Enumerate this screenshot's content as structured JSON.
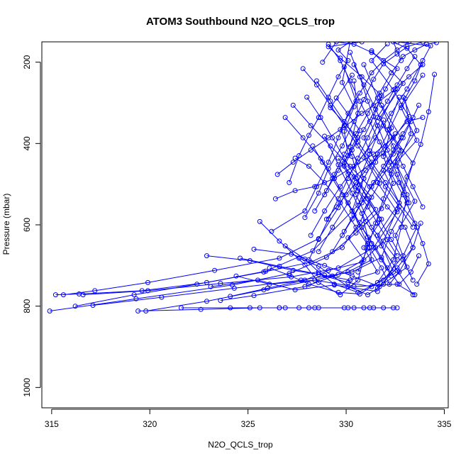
{
  "chart_data": {
    "type": "line",
    "title": "ATOM3 Southbound N2O_QCLS_trop",
    "xlabel": "N2O_QCLS_trop",
    "ylabel": "Pressure (mbar)",
    "xlim": [
      314.5,
      335.2
    ],
    "ylim": [
      1050,
      150
    ],
    "y_reversed": true,
    "x_ticks": [
      "315",
      "320",
      "325",
      "330",
      "335"
    ],
    "y_ticks": [
      "200",
      "400",
      "600",
      "800",
      "1000"
    ],
    "markers": "open-circle",
    "grid": false,
    "legend": "none",
    "colors": {
      "series": "#0000ff",
      "axes": "#000000",
      "background": "#ffffff"
    },
    "series": [
      {
        "x": [
          315.2,
          316.4,
          319.6,
          322.9,
          325.9,
          328.3,
          330.6,
          331.5,
          331.2,
          330.9,
          331.4,
          331.8,
          330.8,
          329.7,
          329.1,
          330.8
        ],
        "y": [
          772,
          770,
          762,
          742,
          714,
          664,
          552,
          446,
          418,
          386,
          334,
          282,
          236,
          190,
          162,
          150
        ]
      },
      {
        "x": [
          314.9,
          319.3,
          324.2,
          327.1,
          329.0,
          330.5,
          331.8,
          332.4,
          331.9,
          332.3,
          331.6,
          330.9
        ],
        "y": [
          812,
          782,
          748,
          720,
          680,
          620,
          560,
          498,
          432,
          362,
          288,
          206
        ]
      },
      {
        "x": [
          315.6,
          317.2,
          319.9,
          323.3,
          326.6,
          328.6,
          329.6,
          330.4,
          331.9,
          333.2,
          332.4,
          331.3,
          332.1
        ],
        "y": [
          772,
          762,
          742,
          712,
          682,
          634,
          558,
          482,
          424,
          334,
          268,
          196,
          155
        ]
      },
      {
        "x": [
          316.2,
          319.2,
          322.4,
          325.8,
          328.2,
          329.8,
          330.7,
          331.3,
          329.9,
          330.6,
          329.2,
          330.3
        ],
        "y": [
          800,
          772,
          746,
          716,
          692,
          656,
          594,
          532,
          456,
          386,
          312,
          232
        ]
      },
      {
        "x": [
          316.6,
          319.9,
          323.6,
          327.2,
          329.6,
          331.4,
          332.6,
          331.6,
          332.8,
          331.7,
          332.9,
          331.3
        ],
        "y": [
          772,
          762,
          744,
          728,
          706,
          656,
          568,
          496,
          418,
          338,
          252,
          172
        ]
      },
      {
        "x": [
          317.1,
          320.6,
          324.3,
          327.7,
          330.3,
          331.8,
          332.3,
          333.1,
          332.2,
          333.6,
          332.8,
          333.9
        ],
        "y": [
          798,
          778,
          756,
          736,
          716,
          680,
          616,
          546,
          466,
          392,
          312,
          232
        ]
      },
      {
        "x": [
          319.8,
          322.9,
          325.8,
          328.4,
          330.1,
          331.3,
          331.1,
          330.8,
          331.7,
          330.9,
          331.6,
          332.6
        ],
        "y": [
          812,
          788,
          760,
          736,
          716,
          686,
          630,
          572,
          498,
          434,
          356,
          266
        ]
      },
      {
        "x": [
          323.6,
          325.3,
          327.9,
          329.6,
          330.9,
          330.1,
          331.5,
          330.7,
          330.3,
          329.7,
          330.5,
          329.9
        ],
        "y": [
          786,
          774,
          752,
          722,
          686,
          632,
          562,
          502,
          432,
          366,
          296,
          212
        ]
      },
      {
        "x": [
          324.1,
          326.0,
          327.9,
          329.1,
          330.8,
          331.9,
          332.6,
          333.1,
          333.8,
          334.2,
          334.5
        ],
        "y": [
          776,
          756,
          736,
          712,
          692,
          640,
          562,
          482,
          402,
          322,
          230
        ]
      },
      {
        "x": [
          322.9,
          325.1,
          327.3,
          328.9,
          330.2,
          331.6,
          330.9,
          331.8,
          330.5,
          331.2,
          331.9
        ],
        "y": [
          676,
          688,
          712,
          724,
          736,
          716,
          656,
          586,
          506,
          426,
          342
        ]
      },
      {
        "x": [
          324.6,
          326.6,
          328.6,
          330.1,
          331.3,
          332.4,
          331.6,
          332.7,
          331.9,
          332.8,
          331.8
        ],
        "y": [
          682,
          702,
          722,
          742,
          752,
          716,
          626,
          546,
          466,
          386,
          306
        ]
      },
      {
        "x": [
          325.3,
          327.2,
          328.9,
          330.3,
          331.7,
          333.1,
          332.5,
          333.5,
          332.6,
          333.3,
          333.0
        ],
        "y": [
          660,
          672,
          700,
          726,
          752,
          704,
          626,
          542,
          456,
          376,
          290
        ]
      },
      {
        "x": [
          325.6,
          326.6,
          327.9,
          328.6,
          329.7,
          330.6,
          331.1,
          330.3,
          330.9,
          330.2,
          330.6,
          330.4
        ],
        "y": [
          592,
          640,
          698,
          742,
          772,
          736,
          646,
          566,
          486,
          408,
          326,
          246
        ]
      },
      {
        "x": [
          326.1,
          327.1,
          328.1,
          329.6,
          330.7,
          331.6,
          332.4,
          332.8,
          333.1,
          332.5,
          333.6,
          332.9
        ],
        "y": [
          706,
          724,
          746,
          766,
          770,
          742,
          686,
          606,
          526,
          446,
          368,
          286
        ]
      },
      {
        "x": [
          326.9,
          327.9,
          328.6,
          329.4,
          330.6,
          331.9,
          332.9,
          333.6,
          332.9,
          333.4,
          332.1,
          332.7
        ],
        "y": [
          652,
          684,
          716,
          746,
          766,
          736,
          676,
          606,
          526,
          448,
          366,
          286
        ]
      },
      {
        "x": [
          327.6,
          328.6,
          329.3,
          330.1,
          331.1,
          331.9,
          332.6,
          331.3,
          330.5,
          329.9,
          330.7,
          329.5
        ],
        "y": [
          682,
          702,
          726,
          752,
          772,
          746,
          686,
          606,
          526,
          448,
          368,
          288
        ]
      },
      {
        "x": [
          327.1,
          327.6,
          328.1,
          328.6,
          329.1,
          329.6,
          330.1,
          329.6,
          330.2,
          329.8,
          330.4,
          329.9,
          330.1
        ],
        "y": [
          496,
          430,
          380,
          336,
          286,
          236,
          196,
          170,
          150,
          250,
          310,
          370,
          430
        ]
      },
      {
        "x": [
          327.9,
          328.6,
          329.1,
          329.8,
          330.4,
          330.9,
          331.4,
          331.9,
          332.6,
          333.1,
          333.9
        ],
        "y": [
          582,
          522,
          462,
          406,
          346,
          292,
          242,
          204,
          180,
          162,
          150
        ]
      },
      {
        "x": [
          328.2,
          328.9,
          329.7,
          330.6,
          331.5,
          332.3,
          333.1,
          333.8,
          333.1,
          332.4,
          332.8
        ],
        "y": [
          626,
          566,
          506,
          446,
          386,
          326,
          266,
          206,
          166,
          150,
          196
        ]
      },
      {
        "x": [
          328.6,
          329.3,
          330.1,
          330.9,
          331.6,
          332.2,
          332.8,
          333.5,
          333.9,
          334.3,
          332.6
        ],
        "y": [
          666,
          606,
          546,
          486,
          426,
          366,
          306,
          246,
          196,
          160,
          150
        ]
      },
      {
        "x": [
          328.4,
          329.0,
          329.6,
          330.3,
          330.9,
          331.5,
          332.0,
          332.6,
          331.3,
          330.4,
          329.5,
          328.8
        ],
        "y": [
          566,
          516,
          466,
          416,
          366,
          316,
          266,
          216,
          176,
          156,
          150,
          200
        ]
      },
      {
        "x": [
          328.9,
          329.4,
          329.9,
          330.5,
          331.1,
          331.7,
          332.3,
          332.9,
          333.5,
          334.1,
          334.6
        ],
        "y": [
          526,
          476,
          426,
          376,
          326,
          276,
          226,
          186,
          170,
          156,
          152
        ]
      },
      {
        "x": [
          326.2,
          327.9,
          328.5,
          329.1,
          329.6,
          330.1,
          330.7,
          331.3,
          331.9,
          332.6,
          333.2
        ],
        "y": [
          616,
          566,
          506,
          446,
          386,
          326,
          276,
          226,
          196,
          170,
          150
        ]
      },
      {
        "x": [
          327.4,
          328.1,
          328.9,
          329.7,
          330.5,
          331.2,
          331.8,
          332.2,
          332.7,
          333.4,
          333.8
        ],
        "y": [
          436,
          456,
          496,
          546,
          606,
          656,
          706,
          746,
          716,
          656,
          596
        ]
      },
      {
        "x": [
          326.9,
          327.8,
          328.7,
          329.4,
          330.1,
          330.8,
          331.5,
          332.1,
          332.7,
          333.3,
          333.7
        ],
        "y": [
          336,
          386,
          436,
          486,
          546,
          606,
          656,
          706,
          746,
          716,
          676
        ]
      },
      {
        "x": [
          328.0,
          328.7,
          329.3,
          329.9,
          330.5,
          331.1,
          331.7,
          332.3,
          332.9,
          333.4
        ],
        "y": [
          286,
          336,
          386,
          436,
          486,
          536,
          586,
          636,
          686,
          736
        ]
      },
      {
        "x": [
          327.3,
          328.2,
          329.2,
          330.2,
          331.2,
          332.1,
          333.0,
          333.4,
          332.6,
          331.6
        ],
        "y": [
          306,
          356,
          406,
          456,
          506,
          556,
          606,
          656,
          706,
          756
        ]
      },
      {
        "x": [
          328.5,
          329.2,
          329.9,
          330.6,
          331.3,
          332.0,
          332.7,
          333.5,
          333.9,
          334.2,
          333.6
        ],
        "y": [
          246,
          296,
          346,
          396,
          446,
          496,
          546,
          596,
          646,
          696,
          746
        ]
      },
      {
        "x": [
          326.4,
          327.4,
          328.4,
          329.4,
          330.4,
          331.4,
          332.4,
          333.1,
          333.9
        ],
        "y": [
          536,
          516,
          506,
          486,
          456,
          426,
          386,
          346,
          336
        ]
      },
      {
        "x": [
          328.1,
          328.6,
          329.1,
          329.6,
          330.1,
          330.6,
          331.1,
          331.6,
          332.1,
          332.6,
          333.1,
          333.5
        ],
        "y": [
          686,
          636,
          586,
          536,
          486,
          436,
          386,
          336,
          296,
          256,
          216,
          186
        ]
      },
      {
        "x": [
          326.5,
          327.3,
          328.2,
          329.1,
          330.0,
          330.8,
          331.7,
          332.5,
          333.2,
          333.9
        ],
        "y": [
          476,
          446,
          416,
          386,
          356,
          326,
          296,
          266,
          236,
          206
        ]
      },
      {
        "x": [
          329.3,
          329.8,
          330.3,
          330.8,
          331.3,
          331.9,
          332.4,
          332.9,
          333.3,
          333.7
        ],
        "y": [
          666,
          626,
          586,
          546,
          506,
          466,
          426,
          386,
          346,
          306
        ]
      },
      {
        "x": [
          327.8,
          328.5,
          329.2,
          329.9,
          330.6,
          331.3,
          332.0,
          332.7,
          333.4
        ],
        "y": [
          216,
          256,
          306,
          356,
          406,
          456,
          506,
          556,
          606
        ]
      },
      {
        "x": [
          329.1,
          329.7,
          330.2,
          330.7,
          331.2,
          331.7,
          332.2,
          332.7,
          333.2
        ],
        "y": [
          156,
          196,
          246,
          296,
          346,
          396,
          446,
          496,
          546
        ]
      },
      {
        "x": [
          321.6,
          324.1,
          326.6,
          328.6,
          330.1,
          331.4,
          332.6
        ],
        "y": [
          804,
          804,
          804,
          804,
          804,
          804,
          804
        ]
      },
      {
        "x": [
          319.4,
          322.6,
          325.6,
          328.1,
          330.4,
          332.4
        ],
        "y": [
          812,
          808,
          804,
          804,
          804,
          804
        ]
      },
      {
        "x": [
          325.1,
          326.9,
          328.4,
          330.9,
          331.9
        ],
        "y": [
          804,
          804,
          804,
          804,
          804
        ]
      },
      {
        "x": [
          326.6,
          327.6,
          329.9,
          331.2
        ],
        "y": [
          804,
          804,
          804,
          804
        ]
      },
      {
        "x": [
          323.1,
          325.5,
          327.4,
          329.4,
          331.6
        ],
        "y": [
          752,
          736,
          760,
          748,
          764
        ]
      },
      {
        "x": [
          324.4,
          326.1,
          328.4,
          330.4,
          332.6,
          333.5
        ],
        "y": [
          726,
          746,
          736,
          752,
          746,
          772
        ]
      },
      {
        "x": [
          328.9,
          329.6,
          330.3,
          331.0,
          331.8,
          332.6,
          333.4
        ],
        "y": [
          382,
          452,
          522,
          592,
          652,
          712,
          772
        ]
      },
      {
        "x": [
          330.2,
          330.7,
          331.1,
          331.6,
          332.1,
          332.6,
          333.1
        ],
        "y": [
          176,
          236,
          296,
          356,
          416,
          476,
          536
        ]
      },
      {
        "x": [
          328.3,
          328.8,
          329.3,
          329.8,
          330.3,
          330.8,
          331.3,
          331.8,
          332.3
        ],
        "y": [
          406,
          446,
          486,
          526,
          566,
          606,
          646,
          686,
          726
        ]
      },
      {
        "x": [
          329.6,
          330.1,
          330.6,
          331.1,
          331.6,
          332.1,
          332.6
        ],
        "y": [
          436,
          476,
          516,
          556,
          596,
          636,
          676
        ]
      },
      {
        "x": [
          330.4,
          330.9,
          331.4,
          331.9,
          332.4,
          332.9,
          333.4,
          333.9
        ],
        "y": [
          206,
          256,
          306,
          356,
          406,
          456,
          506,
          556
        ]
      },
      {
        "x": [
          329.0,
          329.5,
          330.0,
          330.5,
          331.0,
          331.5,
          332.0,
          332.5
        ],
        "y": [
          586,
          556,
          526,
          496,
          466,
          436,
          406,
          376
        ]
      },
      {
        "x": [
          329.9,
          330.4,
          330.9,
          331.4,
          331.9,
          332.4,
          332.9,
          333.4
        ],
        "y": [
          616,
          576,
          536,
          496,
          456,
          416,
          376,
          336
        ]
      },
      {
        "x": [
          330.6,
          331.1,
          331.5,
          331.9,
          332.3,
          332.7
        ],
        "y": [
          716,
          656,
          596,
          536,
          476,
          416
        ]
      }
    ]
  }
}
